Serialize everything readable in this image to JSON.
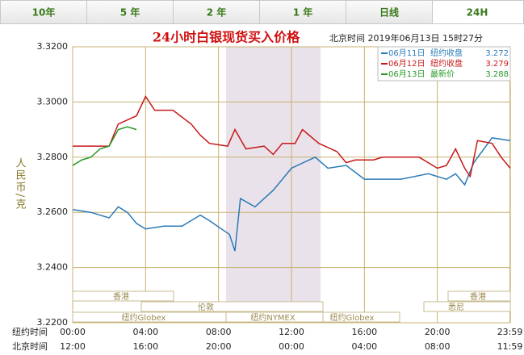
{
  "tabs": [
    "10年",
    "5 年",
    "2 年",
    "1 年",
    "日线",
    "24H"
  ],
  "chart_data": {
    "type": "line",
    "title": "24小时白银现货买入价格",
    "subtitle": "北京时间  2019年06月13日 15时27分",
    "y_label": "人民币/克",
    "x_row_label": "纽约时间",
    "x2_row_label": "北京时间",
    "xlim": [
      0,
      24
    ],
    "xticks": [
      {
        "value": 0,
        "label": "00:00"
      },
      {
        "value": 4,
        "label": "04:00"
      },
      {
        "value": 8,
        "label": "08:00"
      },
      {
        "value": 12,
        "label": "12:00"
      },
      {
        "value": 16,
        "label": "16:00"
      },
      {
        "value": 20,
        "label": "20:00"
      },
      {
        "value": 23.98,
        "label": "23:59"
      }
    ],
    "x2ticks": [
      {
        "value": 0,
        "label": "12:00"
      },
      {
        "value": 4,
        "label": "16:00"
      },
      {
        "value": 8,
        "label": "20:00"
      },
      {
        "value": 12,
        "label": "00:00"
      },
      {
        "value": 16,
        "label": "04:00"
      },
      {
        "value": 20,
        "label": "08:00"
      },
      {
        "value": 23.98,
        "label": "11:59"
      }
    ],
    "ylim": [
      3.22,
      3.32
    ],
    "yticks": [
      {
        "value": 3.22,
        "label": "3.2200"
      },
      {
        "value": 3.24,
        "label": "3.2400"
      },
      {
        "value": 3.26,
        "label": "3.2600"
      },
      {
        "value": 3.28,
        "label": "3.2800"
      },
      {
        "value": 3.3,
        "label": "3.3000"
      },
      {
        "value": 3.32,
        "label": "3.3200"
      }
    ],
    "grid": true,
    "sessions": [
      "香港",
      "香港",
      "伦敦",
      "悉尼",
      "纽约Globex",
      "纽约NYMEX",
      "纽约Globex"
    ],
    "series": [
      {
        "name": "06月11日",
        "kind": "纽约收盘",
        "last": 3.272,
        "color": "#2a7ab8",
        "x": [
          0,
          1,
          2,
          2.5,
          3,
          3.5,
          4,
          5,
          6,
          7,
          7.5,
          8.6,
          8.9,
          9.2,
          10,
          11,
          12,
          13.3,
          14,
          15,
          16,
          17,
          18,
          19.5,
          20.5,
          21,
          21.5,
          22,
          23,
          24
        ],
        "values": [
          3.261,
          3.26,
          3.258,
          3.262,
          3.26,
          3.256,
          3.254,
          3.255,
          3.255,
          3.259,
          3.257,
          3.252,
          3.246,
          3.265,
          3.262,
          3.268,
          3.276,
          3.28,
          3.276,
          3.277,
          3.272,
          3.272,
          3.272,
          3.274,
          3.272,
          3.274,
          3.27,
          3.278,
          3.287,
          3.286
        ]
      },
      {
        "name": "06月12日",
        "kind": "纽约收盘",
        "last": 3.279,
        "color": "#c81818",
        "x": [
          0,
          1,
          2,
          2.5,
          3.5,
          4,
          4.5,
          5.5,
          6.5,
          7,
          7.5,
          8.5,
          8.9,
          9.5,
          10.5,
          11,
          11.5,
          12.2,
          12.6,
          13.5,
          14.5,
          15,
          15.5,
          16.5,
          17,
          18,
          19,
          20,
          20.5,
          21,
          21.5,
          21.8,
          22.2,
          23,
          23.5,
          24
        ],
        "values": [
          3.284,
          3.284,
          3.284,
          3.292,
          3.295,
          3.302,
          3.297,
          3.297,
          3.292,
          3.288,
          3.285,
          3.284,
          3.29,
          3.283,
          3.284,
          3.281,
          3.285,
          3.285,
          3.29,
          3.285,
          3.282,
          3.278,
          3.279,
          3.279,
          3.28,
          3.28,
          3.28,
          3.276,
          3.277,
          3.283,
          3.276,
          3.273,
          3.286,
          3.285,
          3.28,
          3.276
        ]
      },
      {
        "name": "06月13日",
        "kind": "最新价",
        "last": 3.288,
        "color": "#2a9a2a",
        "x": [
          0,
          0.5,
          1,
          1.5,
          2,
          2.5,
          3,
          3.5
        ],
        "values": [
          3.277,
          3.279,
          3.28,
          3.283,
          3.284,
          3.29,
          3.291,
          3.29
        ]
      }
    ]
  }
}
